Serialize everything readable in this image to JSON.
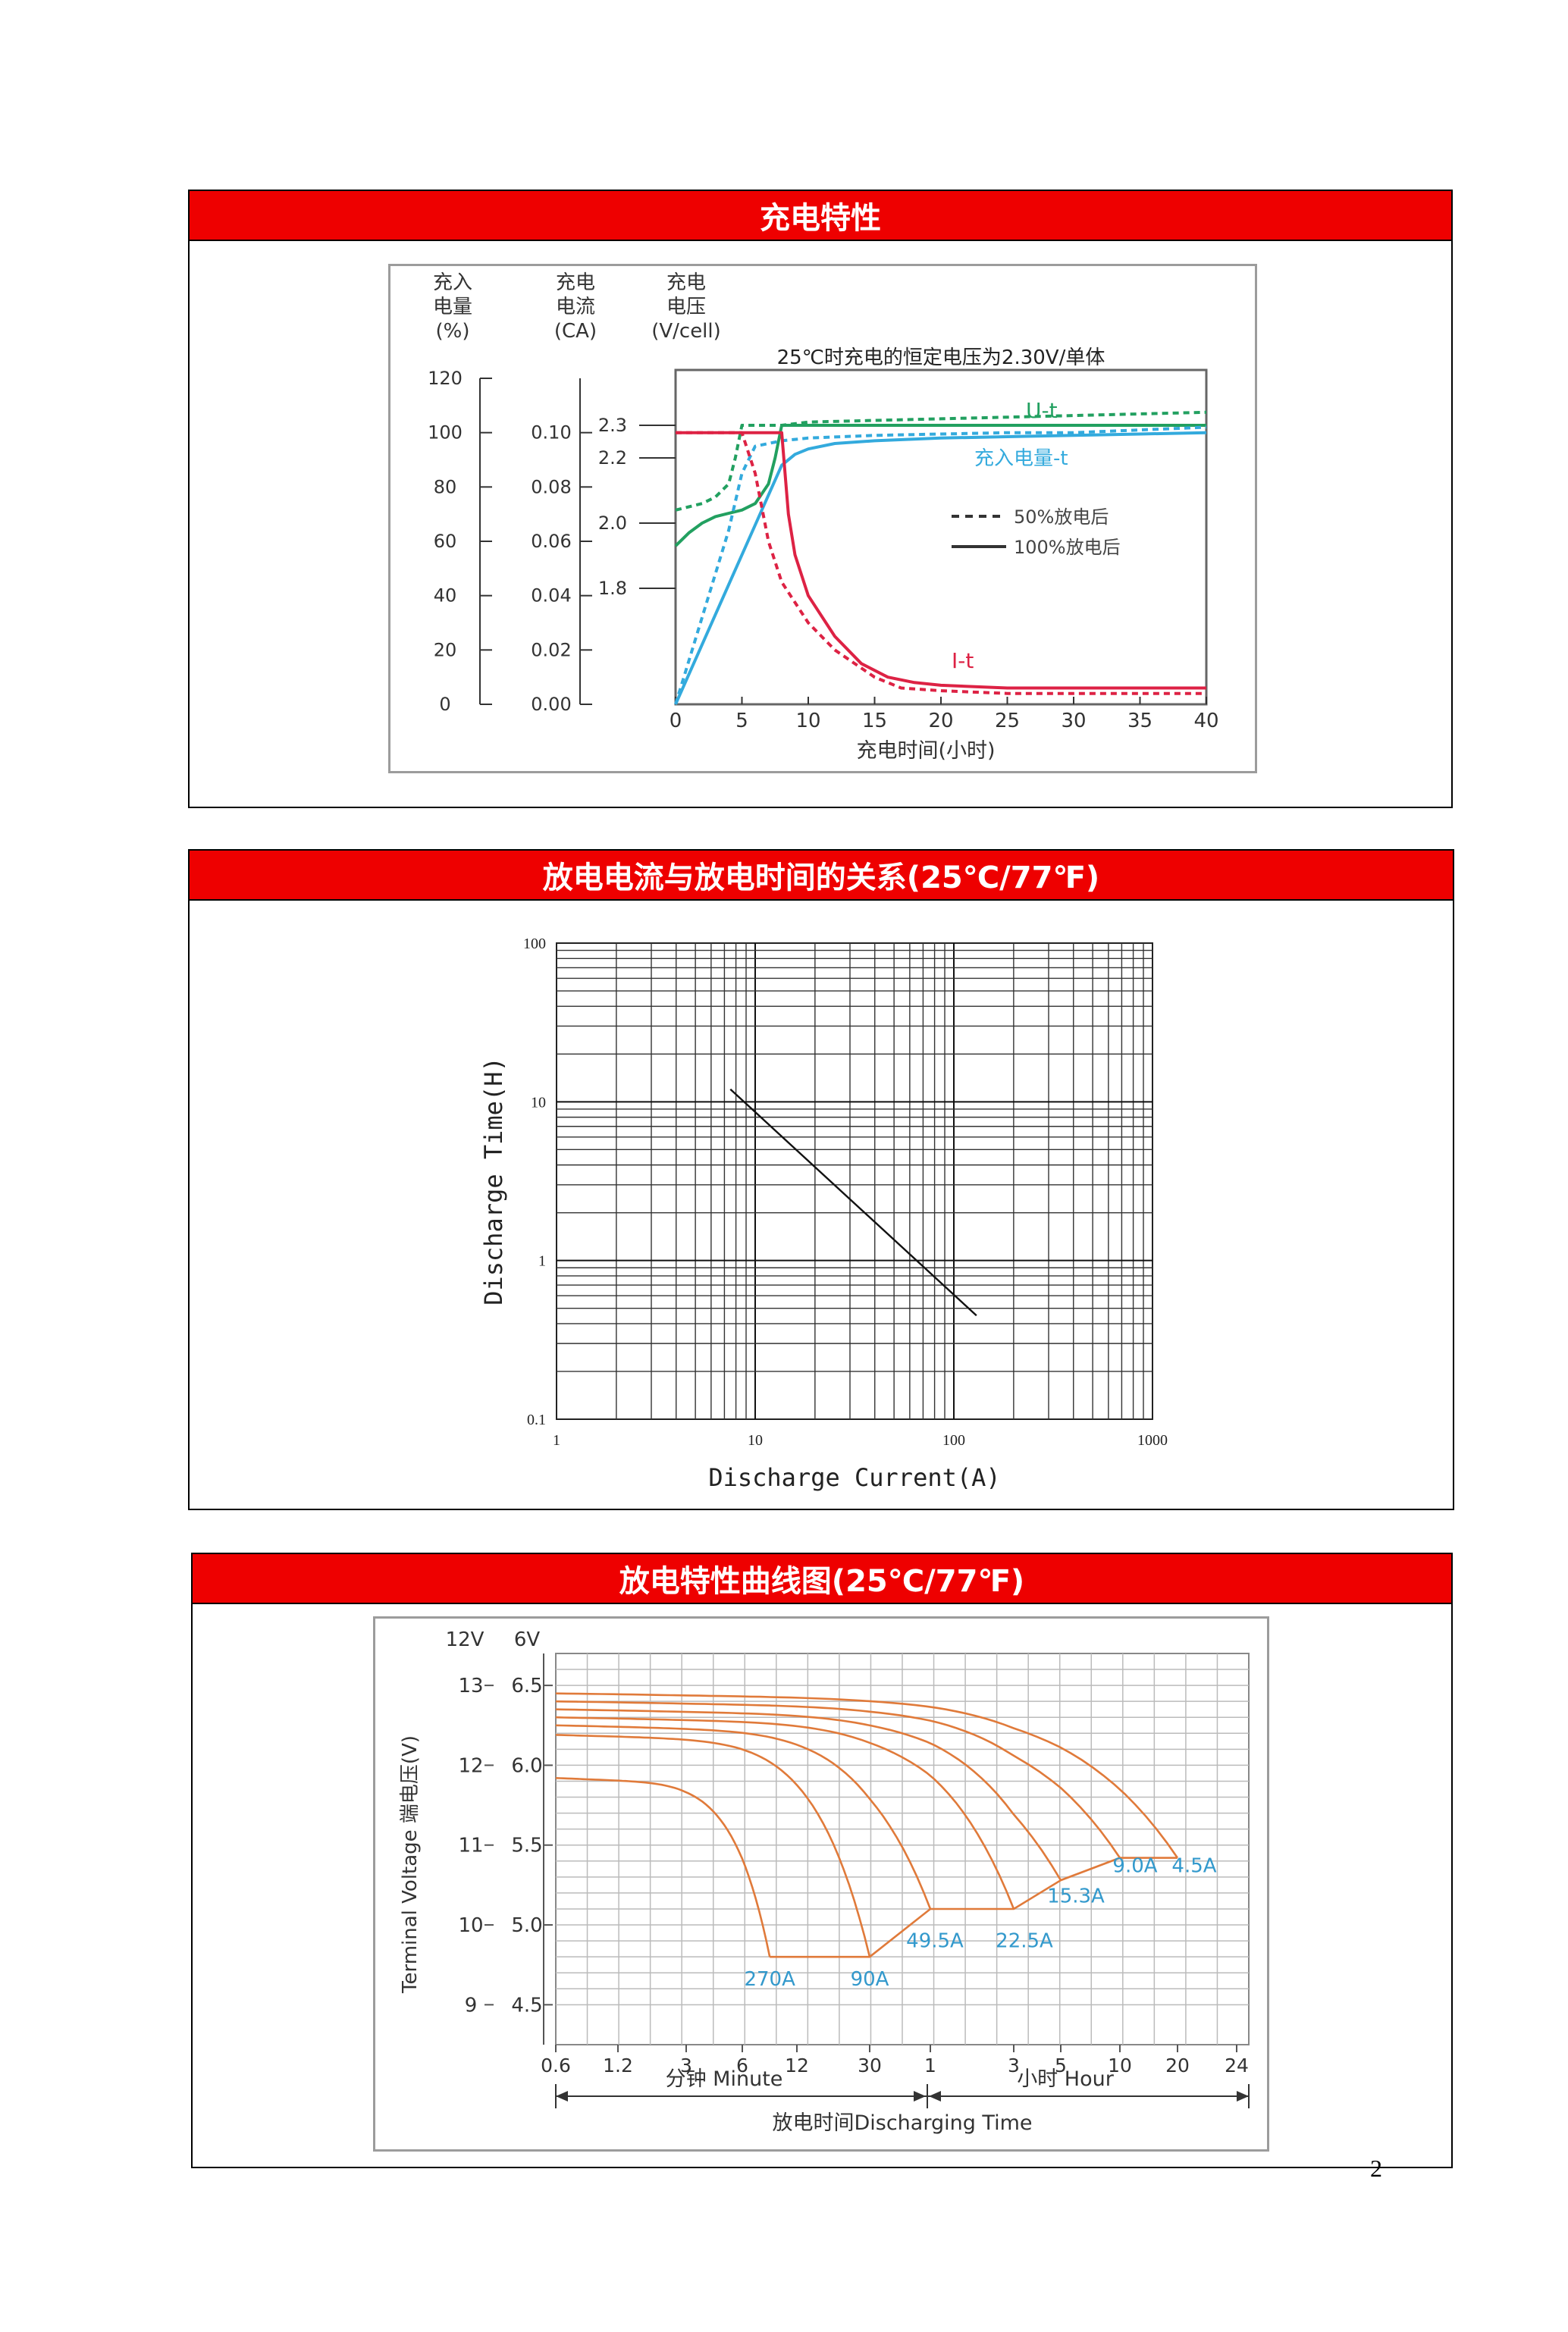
{
  "page_number": "2",
  "colors": {
    "header_red": "#ee0000",
    "charge_green": "#22a060",
    "charge_blue": "#33aadd",
    "charge_red": "#dd2244",
    "discharge_orange": "#e07a3a",
    "label_blue": "#3399cc"
  },
  "charging": {
    "title": "充电特性",
    "chart_data": {
      "type": "line",
      "title": "25℃时充电的恒定电压为2.30V/单体",
      "xlabel": "充电时间(小时)",
      "x_ticks": [
        "0",
        "5",
        "10",
        "15",
        "20",
        "25",
        "30",
        "35",
        "40"
      ],
      "xlim": [
        0,
        40
      ],
      "axis_charge_amount": {
        "label": [
          "充入",
          "电量",
          "(%)"
        ],
        "ticks": [
          "120",
          "100",
          "80",
          "60",
          "40",
          "20",
          "0"
        ]
      },
      "axis_current": {
        "label": [
          "充电",
          "电流",
          "(CA)"
        ],
        "ticks": [
          "0.10",
          "0.08",
          "0.06",
          "0.04",
          "0.02",
          "0.00"
        ]
      },
      "axis_voltage": {
        "label": [
          "充电",
          "电压",
          "(V/cell)"
        ],
        "ticks": [
          "2.3",
          "2.2",
          "2.0",
          "1.8"
        ]
      },
      "curve_labels": {
        "voltage": "U-t",
        "charge_amount": "充入电量-t",
        "current": "I-t"
      },
      "legend": [
        {
          "name": "50%放电后",
          "style": "dashed"
        },
        {
          "name": "100%放电后",
          "style": "solid"
        }
      ],
      "legend_placement": "center-right",
      "series": [
        {
          "name": "U-t 50%放电后",
          "color": "#22a060",
          "dash": true,
          "x": [
            0,
            1,
            2,
            3,
            4,
            4.5,
            5,
            6,
            8,
            10,
            20,
            30,
            40
          ],
          "y": [
            2.04,
            2.05,
            2.06,
            2.08,
            2.12,
            2.2,
            2.3,
            2.3,
            2.3,
            2.31,
            2.32,
            2.33,
            2.34
          ]
        },
        {
          "name": "U-t 100%放电后",
          "color": "#22a060",
          "dash": false,
          "x": [
            0,
            1,
            2,
            3,
            4,
            5,
            6,
            7,
            7.5,
            8,
            10,
            20,
            30,
            40
          ],
          "y": [
            1.93,
            1.97,
            2.0,
            2.02,
            2.03,
            2.04,
            2.06,
            2.12,
            2.2,
            2.3,
            2.3,
            2.3,
            2.3,
            2.3
          ]
        },
        {
          "name": "充入电量-t 50%放电后",
          "color": "#33aadd",
          "dash": true,
          "x": [
            0,
            2,
            4,
            5,
            6,
            8,
            10,
            15,
            20,
            25,
            30,
            35,
            40
          ],
          "y": [
            0,
            32,
            64,
            85,
            95,
            97,
            98,
            99,
            99.5,
            100,
            100,
            101,
            102
          ]
        },
        {
          "name": "充入电量-t 100%放电后",
          "color": "#33aadd",
          "dash": false,
          "x": [
            0,
            2,
            4,
            6,
            8,
            9,
            10,
            12,
            15,
            20,
            25,
            30,
            35,
            40
          ],
          "y": [
            0,
            22,
            44,
            66,
            88,
            92,
            94,
            96,
            97,
            98,
            98.5,
            99,
            99.5,
            100
          ]
        },
        {
          "name": "I-t 50%放电后",
          "color": "#dd2244",
          "dash": true,
          "x": [
            0,
            5,
            6,
            7,
            8,
            10,
            12,
            15,
            17,
            20,
            25,
            30,
            40
          ],
          "y": [
            0.1,
            0.1,
            0.085,
            0.06,
            0.045,
            0.03,
            0.02,
            0.01,
            0.006,
            0.005,
            0.004,
            0.004,
            0.004
          ]
        },
        {
          "name": "I-t 100%放电后",
          "color": "#dd2244",
          "dash": false,
          "x": [
            0,
            8,
            8.5,
            9,
            10,
            12,
            14,
            16,
            18,
            20,
            25,
            30,
            40
          ],
          "y": [
            0.1,
            0.1,
            0.07,
            0.055,
            0.04,
            0.025,
            0.015,
            0.01,
            0.008,
            0.007,
            0.006,
            0.006,
            0.006
          ]
        }
      ]
    }
  },
  "current_time": {
    "title": "放电电流与放电时间的关系(25℃/77℉)",
    "chart_data": {
      "type": "line",
      "xlabel": "Discharge Current(A)",
      "ylabel": "Discharge Time(H)",
      "x_scale": "log",
      "y_scale": "log",
      "xlim": [
        1,
        1000
      ],
      "ylim": [
        0.1,
        100
      ],
      "x_ticks": [
        "1",
        "10",
        "100",
        "1000"
      ],
      "y_ticks": [
        "100",
        "10",
        "1",
        "0.1"
      ],
      "grid": true,
      "series": [
        {
          "x": [
            7.5,
            130
          ],
          "y": [
            12,
            0.45
          ]
        }
      ]
    }
  },
  "discharge": {
    "title": "放电特性曲线图(25℃/77℉)",
    "chart_data": {
      "type": "line",
      "ylabel": "Terminal Voltage 端电压(V)",
      "y_unit_12v": "12V",
      "y_unit_6v": "6V",
      "y_ticks_12v": [
        "13",
        "12",
        "11",
        "10",
        "9"
      ],
      "y_ticks_6v": [
        "6.5",
        "6.0",
        "5.5",
        "5.0",
        "4.5"
      ],
      "ylim_6v": [
        4.25,
        6.7
      ],
      "x_ticks": [
        "0.6",
        "1.2",
        "3",
        "6",
        "12",
        "30",
        "1",
        "3",
        "5",
        "10",
        "20",
        "24"
      ],
      "minute_label": "分钟 Minute",
      "hour_label": "小时 Hour",
      "xlabel": "放电时间Discharging Time",
      "grid": true,
      "series": [
        {
          "name": "270A",
          "start_v": 5.92,
          "end_minutes": 8.5,
          "end_v": 4.8
        },
        {
          "name": "90A",
          "start_v": 6.19,
          "end_minutes": 30,
          "end_v": 4.8
        },
        {
          "name": "49.5A",
          "start_v": 6.25,
          "end_minutes": 60,
          "end_v": 5.1
        },
        {
          "name": "22.5A",
          "start_v": 6.3,
          "end_minutes": 180,
          "end_v": 5.1
        },
        {
          "name": "15.3A",
          "start_v": 6.35,
          "end_minutes": 300,
          "end_v": 5.28
        },
        {
          "name": "9.0A",
          "start_v": 6.4,
          "end_minutes": 600,
          "end_v": 5.42
        },
        {
          "name": "4.5A",
          "start_v": 6.45,
          "end_minutes": 1200,
          "end_v": 5.42
        }
      ]
    }
  }
}
